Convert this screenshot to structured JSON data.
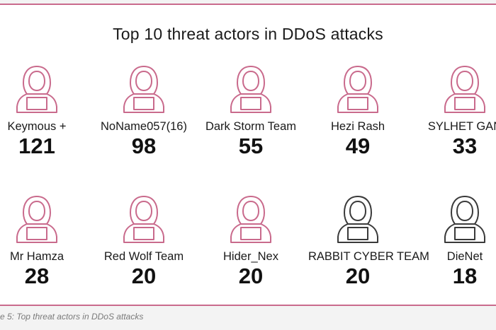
{
  "caption": "e 5: Top threat actors in DDoS attacks",
  "colors": {
    "accent": "#c96a8c",
    "neutral": "#3a3a3a"
  },
  "chart_data": {
    "type": "table",
    "title": "Top 10 threat actors in DDoS attacks",
    "categories": [
      "Keymous +",
      "NoName057(16)",
      "Dark Storm Team",
      "Hezi Rash",
      "SYLHET GAN",
      "Mr Hamza",
      "Red Wolf Team",
      "Hider_Nex",
      "RABBIT CYBER TEAM",
      "DieNet"
    ],
    "values": [
      121,
      98,
      55,
      49,
      33,
      28,
      20,
      20,
      20,
      18
    ],
    "icon": "hooded-hacker-icon",
    "icon_colors": [
      "#c96a8c",
      "#c96a8c",
      "#c96a8c",
      "#c96a8c",
      "#c96a8c",
      "#c96a8c",
      "#c96a8c",
      "#c96a8c",
      "#3a3a3a",
      "#3a3a3a"
    ]
  }
}
